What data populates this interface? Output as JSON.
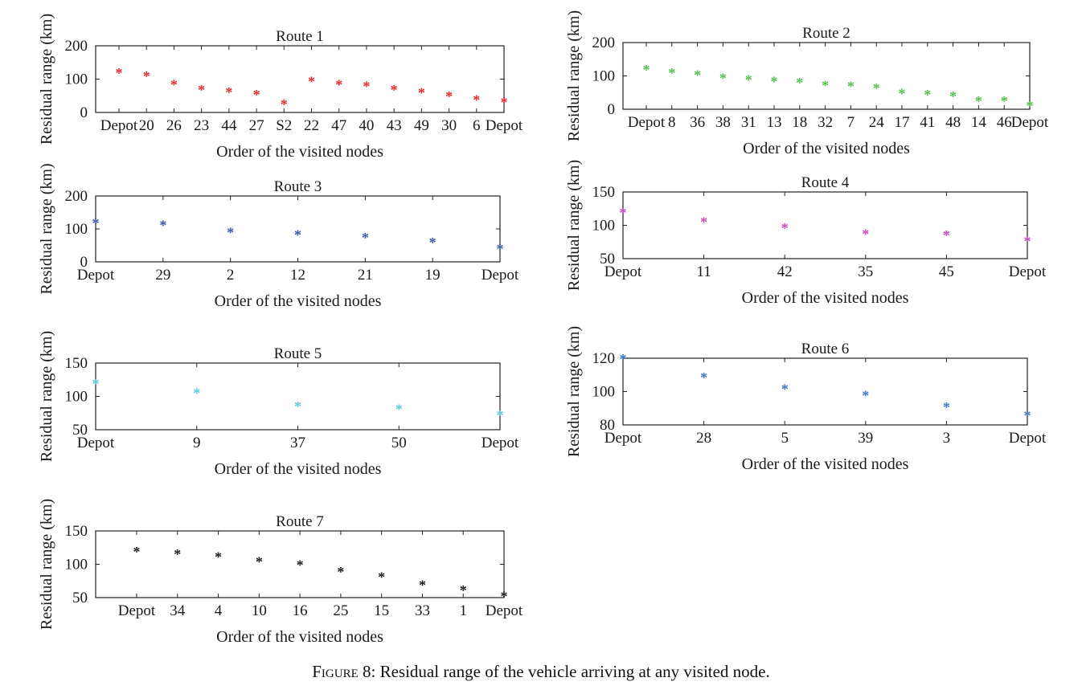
{
  "caption": {
    "label": "Figure 8:",
    "text": "Residual range of the vehicle arriving at any visited node."
  },
  "chart_data": [
    {
      "type": "scatter",
      "title": "Route 1",
      "xlabel": "Order of the visited nodes",
      "ylabel": "Residual range (km)",
      "categories": [
        "Depot",
        "20",
        "26",
        "23",
        "44",
        "27",
        "S2",
        "22",
        "47",
        "40",
        "43",
        "49",
        "30",
        "6",
        "Depot"
      ],
      "values": [
        120,
        111,
        86,
        70,
        63,
        55,
        26,
        95,
        86,
        81,
        70,
        61,
        51,
        40,
        32
      ],
      "ylim": [
        0,
        200
      ],
      "yticks": [
        0,
        100,
        200
      ],
      "color": "#e8262a",
      "grid": false
    },
    {
      "type": "scatter",
      "title": "Route 2",
      "xlabel": "Order of the visited nodes",
      "ylabel": "Residual range (km)",
      "categories": [
        "Depot",
        "8",
        "36",
        "38",
        "31",
        "13",
        "18",
        "32",
        "7",
        "24",
        "17",
        "41",
        "48",
        "14",
        "46",
        "Depot"
      ],
      "values": [
        120,
        111,
        105,
        95,
        90,
        86,
        82,
        73,
        71,
        65,
        50,
        46,
        41,
        27,
        26,
        12
      ],
      "ylim": [
        0,
        200
      ],
      "yticks": [
        0,
        100,
        200
      ],
      "color": "#4fc04a",
      "grid": false
    },
    {
      "type": "scatter",
      "title": "Route 3",
      "xlabel": "Order of the visited nodes",
      "ylabel": "Residual range (km)",
      "categories": [
        "Depot",
        "29",
        "2",
        "12",
        "21",
        "19",
        "Depot"
      ],
      "values": [
        120,
        113,
        92,
        84,
        76,
        61,
        42
      ],
      "ylim": [
        0,
        200
      ],
      "yticks": [
        0,
        100,
        200
      ],
      "color": "#3b56a6",
      "grid": false
    },
    {
      "type": "scatter",
      "title": "Route 4",
      "xlabel": "Order of the visited nodes",
      "ylabel": "Residual range (km)",
      "categories": [
        "Depot",
        "11",
        "42",
        "35",
        "45",
        "Depot"
      ],
      "values": [
        120,
        106,
        97,
        88,
        86,
        77
      ],
      "ylim": [
        50,
        150
      ],
      "yticks": [
        50,
        100,
        150
      ],
      "color": "#c746b8",
      "grid": false
    },
    {
      "type": "scatter",
      "title": "Route 5",
      "xlabel": "Order of the visited nodes",
      "ylabel": "Residual range (km)",
      "categories": [
        "Depot",
        "9",
        "37",
        "50",
        "Depot"
      ],
      "values": [
        120,
        106,
        86,
        82,
        73
      ],
      "ylim": [
        50,
        150
      ],
      "yticks": [
        50,
        100,
        150
      ],
      "color": "#5ec8d8",
      "grid": false
    },
    {
      "type": "scatter",
      "title": "Route 6",
      "xlabel": "Order of the visited nodes",
      "ylabel": "Residual range (km)",
      "categories": [
        "Depot",
        "28",
        "5",
        "39",
        "3",
        "Depot"
      ],
      "values": [
        120,
        109,
        102,
        98,
        91,
        86
      ],
      "ylim": [
        80,
        120
      ],
      "yticks": [
        80,
        100,
        120
      ],
      "color": "#3d74c4",
      "grid": false
    },
    {
      "type": "scatter",
      "title": "Route 7",
      "xlabel": "Order of the visited nodes",
      "ylabel": "Residual range (km)",
      "categories": [
        "Depot",
        "34",
        "4",
        "10",
        "16",
        "25",
        "15",
        "33",
        "1",
        "Depot"
      ],
      "values": [
        120,
        116,
        112,
        105,
        100,
        90,
        82,
        70,
        62,
        53
      ],
      "ylim": [
        50,
        150
      ],
      "yticks": [
        50,
        100,
        150
      ],
      "color": "#1a1a1a",
      "grid": false
    }
  ]
}
